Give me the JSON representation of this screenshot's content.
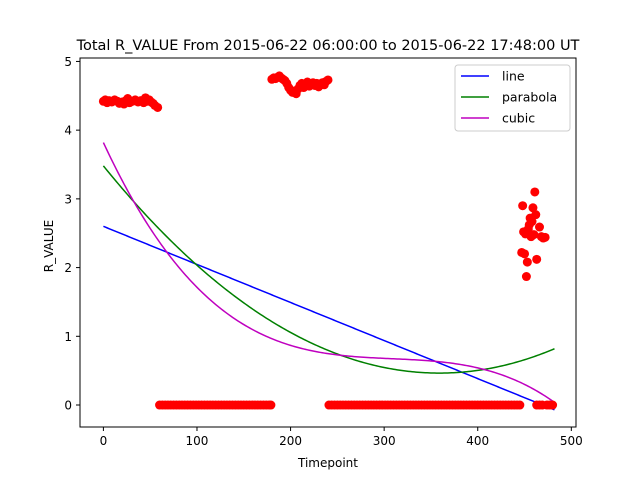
{
  "chart_data": {
    "type": "scatter",
    "title": "Total R_VALUE From 2015-06-22 06:00:00 to 2015-06-22 17:48:00 UT",
    "xlabel": "Timepoint",
    "ylabel": "R_VALUE",
    "xlim": [
      -25,
      505
    ],
    "ylim": [
      -0.32,
      5.05
    ],
    "xticks": [
      0,
      100,
      200,
      300,
      400,
      500
    ],
    "yticks": [
      0,
      1,
      2,
      3,
      4,
      5
    ],
    "grid": false,
    "legend_position": "top-right",
    "points_color": "#ff0000",
    "points": [
      [
        0,
        4.42
      ],
      [
        2,
        4.44
      ],
      [
        4,
        4.4
      ],
      [
        6,
        4.43
      ],
      [
        9,
        4.41
      ],
      [
        12,
        4.44
      ],
      [
        15,
        4.42
      ],
      [
        17,
        4.39
      ],
      [
        20,
        4.41
      ],
      [
        22,
        4.38
      ],
      [
        24,
        4.43
      ],
      [
        26,
        4.46
      ],
      [
        28,
        4.4
      ],
      [
        31,
        4.42
      ],
      [
        34,
        4.44
      ],
      [
        37,
        4.41
      ],
      [
        40,
        4.43
      ],
      [
        43,
        4.4
      ],
      [
        45,
        4.47
      ],
      [
        47,
        4.42
      ],
      [
        49,
        4.44
      ],
      [
        51,
        4.41
      ],
      [
        53,
        4.39
      ],
      [
        55,
        4.36
      ],
      [
        58,
        4.33
      ],
      [
        180,
        4.74
      ],
      [
        182,
        4.76
      ],
      [
        184,
        4.75
      ],
      [
        186,
        4.77
      ],
      [
        188,
        4.79
      ],
      [
        190,
        4.76
      ],
      [
        192,
        4.74
      ],
      [
        194,
        4.72
      ],
      [
        196,
        4.68
      ],
      [
        198,
        4.62
      ],
      [
        200,
        4.58
      ],
      [
        202,
        4.55
      ],
      [
        204,
        4.57
      ],
      [
        206,
        4.53
      ],
      [
        208,
        4.6
      ],
      [
        210,
        4.65
      ],
      [
        212,
        4.68
      ],
      [
        214,
        4.62
      ],
      [
        216,
        4.66
      ],
      [
        218,
        4.7
      ],
      [
        220,
        4.64
      ],
      [
        222,
        4.67
      ],
      [
        224,
        4.69
      ],
      [
        226,
        4.65
      ],
      [
        228,
        4.68
      ],
      [
        230,
        4.63
      ],
      [
        232,
        4.67
      ],
      [
        234,
        4.69
      ],
      [
        236,
        4.66
      ],
      [
        238,
        4.71
      ],
      [
        240,
        4.73
      ],
      [
        447,
        2.22
      ],
      [
        448,
        2.9
      ],
      [
        449,
        2.52
      ],
      [
        450,
        2.2
      ],
      [
        451,
        2.49
      ],
      [
        452,
        1.87
      ],
      [
        453,
        2.08
      ],
      [
        454,
        2.56
      ],
      [
        455,
        2.62
      ],
      [
        456,
        2.72
      ],
      [
        457,
        2.45
      ],
      [
        458,
        2.67
      ],
      [
        459,
        2.87
      ],
      [
        460,
        2.48
      ],
      [
        461,
        3.1
      ],
      [
        462,
        2.77
      ],
      [
        463,
        2.12
      ],
      [
        466,
        2.59
      ],
      [
        468,
        2.45
      ],
      [
        470,
        2.43
      ],
      [
        472,
        2.44
      ],
      [
        60,
        0
      ],
      [
        63,
        0
      ],
      [
        66,
        0
      ],
      [
        69,
        0
      ],
      [
        72,
        0
      ],
      [
        75,
        0
      ],
      [
        78,
        0
      ],
      [
        81,
        0
      ],
      [
        84,
        0
      ],
      [
        87,
        0
      ],
      [
        90,
        0
      ],
      [
        93,
        0
      ],
      [
        96,
        0
      ],
      [
        99,
        0
      ],
      [
        102,
        0
      ],
      [
        105,
        0
      ],
      [
        108,
        0
      ],
      [
        111,
        0
      ],
      [
        114,
        0
      ],
      [
        117,
        0
      ],
      [
        120,
        0
      ],
      [
        123,
        0
      ],
      [
        126,
        0
      ],
      [
        129,
        0
      ],
      [
        132,
        0
      ],
      [
        135,
        0
      ],
      [
        138,
        0
      ],
      [
        141,
        0
      ],
      [
        144,
        0
      ],
      [
        147,
        0
      ],
      [
        150,
        0
      ],
      [
        153,
        0
      ],
      [
        156,
        0
      ],
      [
        159,
        0
      ],
      [
        162,
        0
      ],
      [
        165,
        0
      ],
      [
        168,
        0
      ],
      [
        171,
        0
      ],
      [
        174,
        0
      ],
      [
        177,
        0
      ],
      [
        179,
        0
      ],
      [
        241,
        0
      ],
      [
        244,
        0
      ],
      [
        247,
        0
      ],
      [
        250,
        0
      ],
      [
        253,
        0
      ],
      [
        256,
        0
      ],
      [
        259,
        0
      ],
      [
        262,
        0
      ],
      [
        265,
        0
      ],
      [
        268,
        0
      ],
      [
        271,
        0
      ],
      [
        274,
        0
      ],
      [
        277,
        0
      ],
      [
        280,
        0
      ],
      [
        283,
        0
      ],
      [
        286,
        0
      ],
      [
        289,
        0
      ],
      [
        292,
        0
      ],
      [
        295,
        0
      ],
      [
        298,
        0
      ],
      [
        301,
        0
      ],
      [
        304,
        0
      ],
      [
        307,
        0
      ],
      [
        310,
        0
      ],
      [
        313,
        0
      ],
      [
        316,
        0
      ],
      [
        319,
        0
      ],
      [
        322,
        0
      ],
      [
        325,
        0
      ],
      [
        328,
        0
      ],
      [
        331,
        0
      ],
      [
        334,
        0
      ],
      [
        337,
        0
      ],
      [
        340,
        0
      ],
      [
        343,
        0
      ],
      [
        346,
        0
      ],
      [
        349,
        0
      ],
      [
        352,
        0
      ],
      [
        355,
        0
      ],
      [
        358,
        0
      ],
      [
        361,
        0
      ],
      [
        364,
        0
      ],
      [
        367,
        0
      ],
      [
        370,
        0
      ],
      [
        373,
        0
      ],
      [
        376,
        0
      ],
      [
        379,
        0
      ],
      [
        382,
        0
      ],
      [
        385,
        0
      ],
      [
        388,
        0
      ],
      [
        391,
        0
      ],
      [
        394,
        0
      ],
      [
        397,
        0
      ],
      [
        400,
        0
      ],
      [
        403,
        0
      ],
      [
        406,
        0
      ],
      [
        409,
        0
      ],
      [
        412,
        0
      ],
      [
        415,
        0
      ],
      [
        418,
        0
      ],
      [
        421,
        0
      ],
      [
        424,
        0
      ],
      [
        427,
        0
      ],
      [
        430,
        0
      ],
      [
        433,
        0
      ],
      [
        436,
        0
      ],
      [
        439,
        0
      ],
      [
        442,
        0
      ],
      [
        445,
        0
      ],
      [
        463,
        0
      ],
      [
        466,
        0
      ],
      [
        469,
        0
      ],
      [
        474,
        0
      ],
      [
        477,
        0
      ],
      [
        480,
        0
      ]
    ],
    "series": [
      {
        "name": "line",
        "color": "#0000ff",
        "fit": "linear",
        "coefficients": [
          2.6,
          -0.00554
        ]
      },
      {
        "name": "parabola",
        "color": "#008000",
        "fit": "quadratic",
        "coefficients": [
          3.48,
          -0.0168,
          2.34e-05
        ]
      },
      {
        "name": "cubic",
        "color": "#bf00bf",
        "fit": "cubic",
        "coefficients": [
          3.82,
          -0.0294,
          9.34e-05,
          -1.01e-07
        ]
      }
    ],
    "fit_x_range": [
      0,
      482
    ]
  }
}
